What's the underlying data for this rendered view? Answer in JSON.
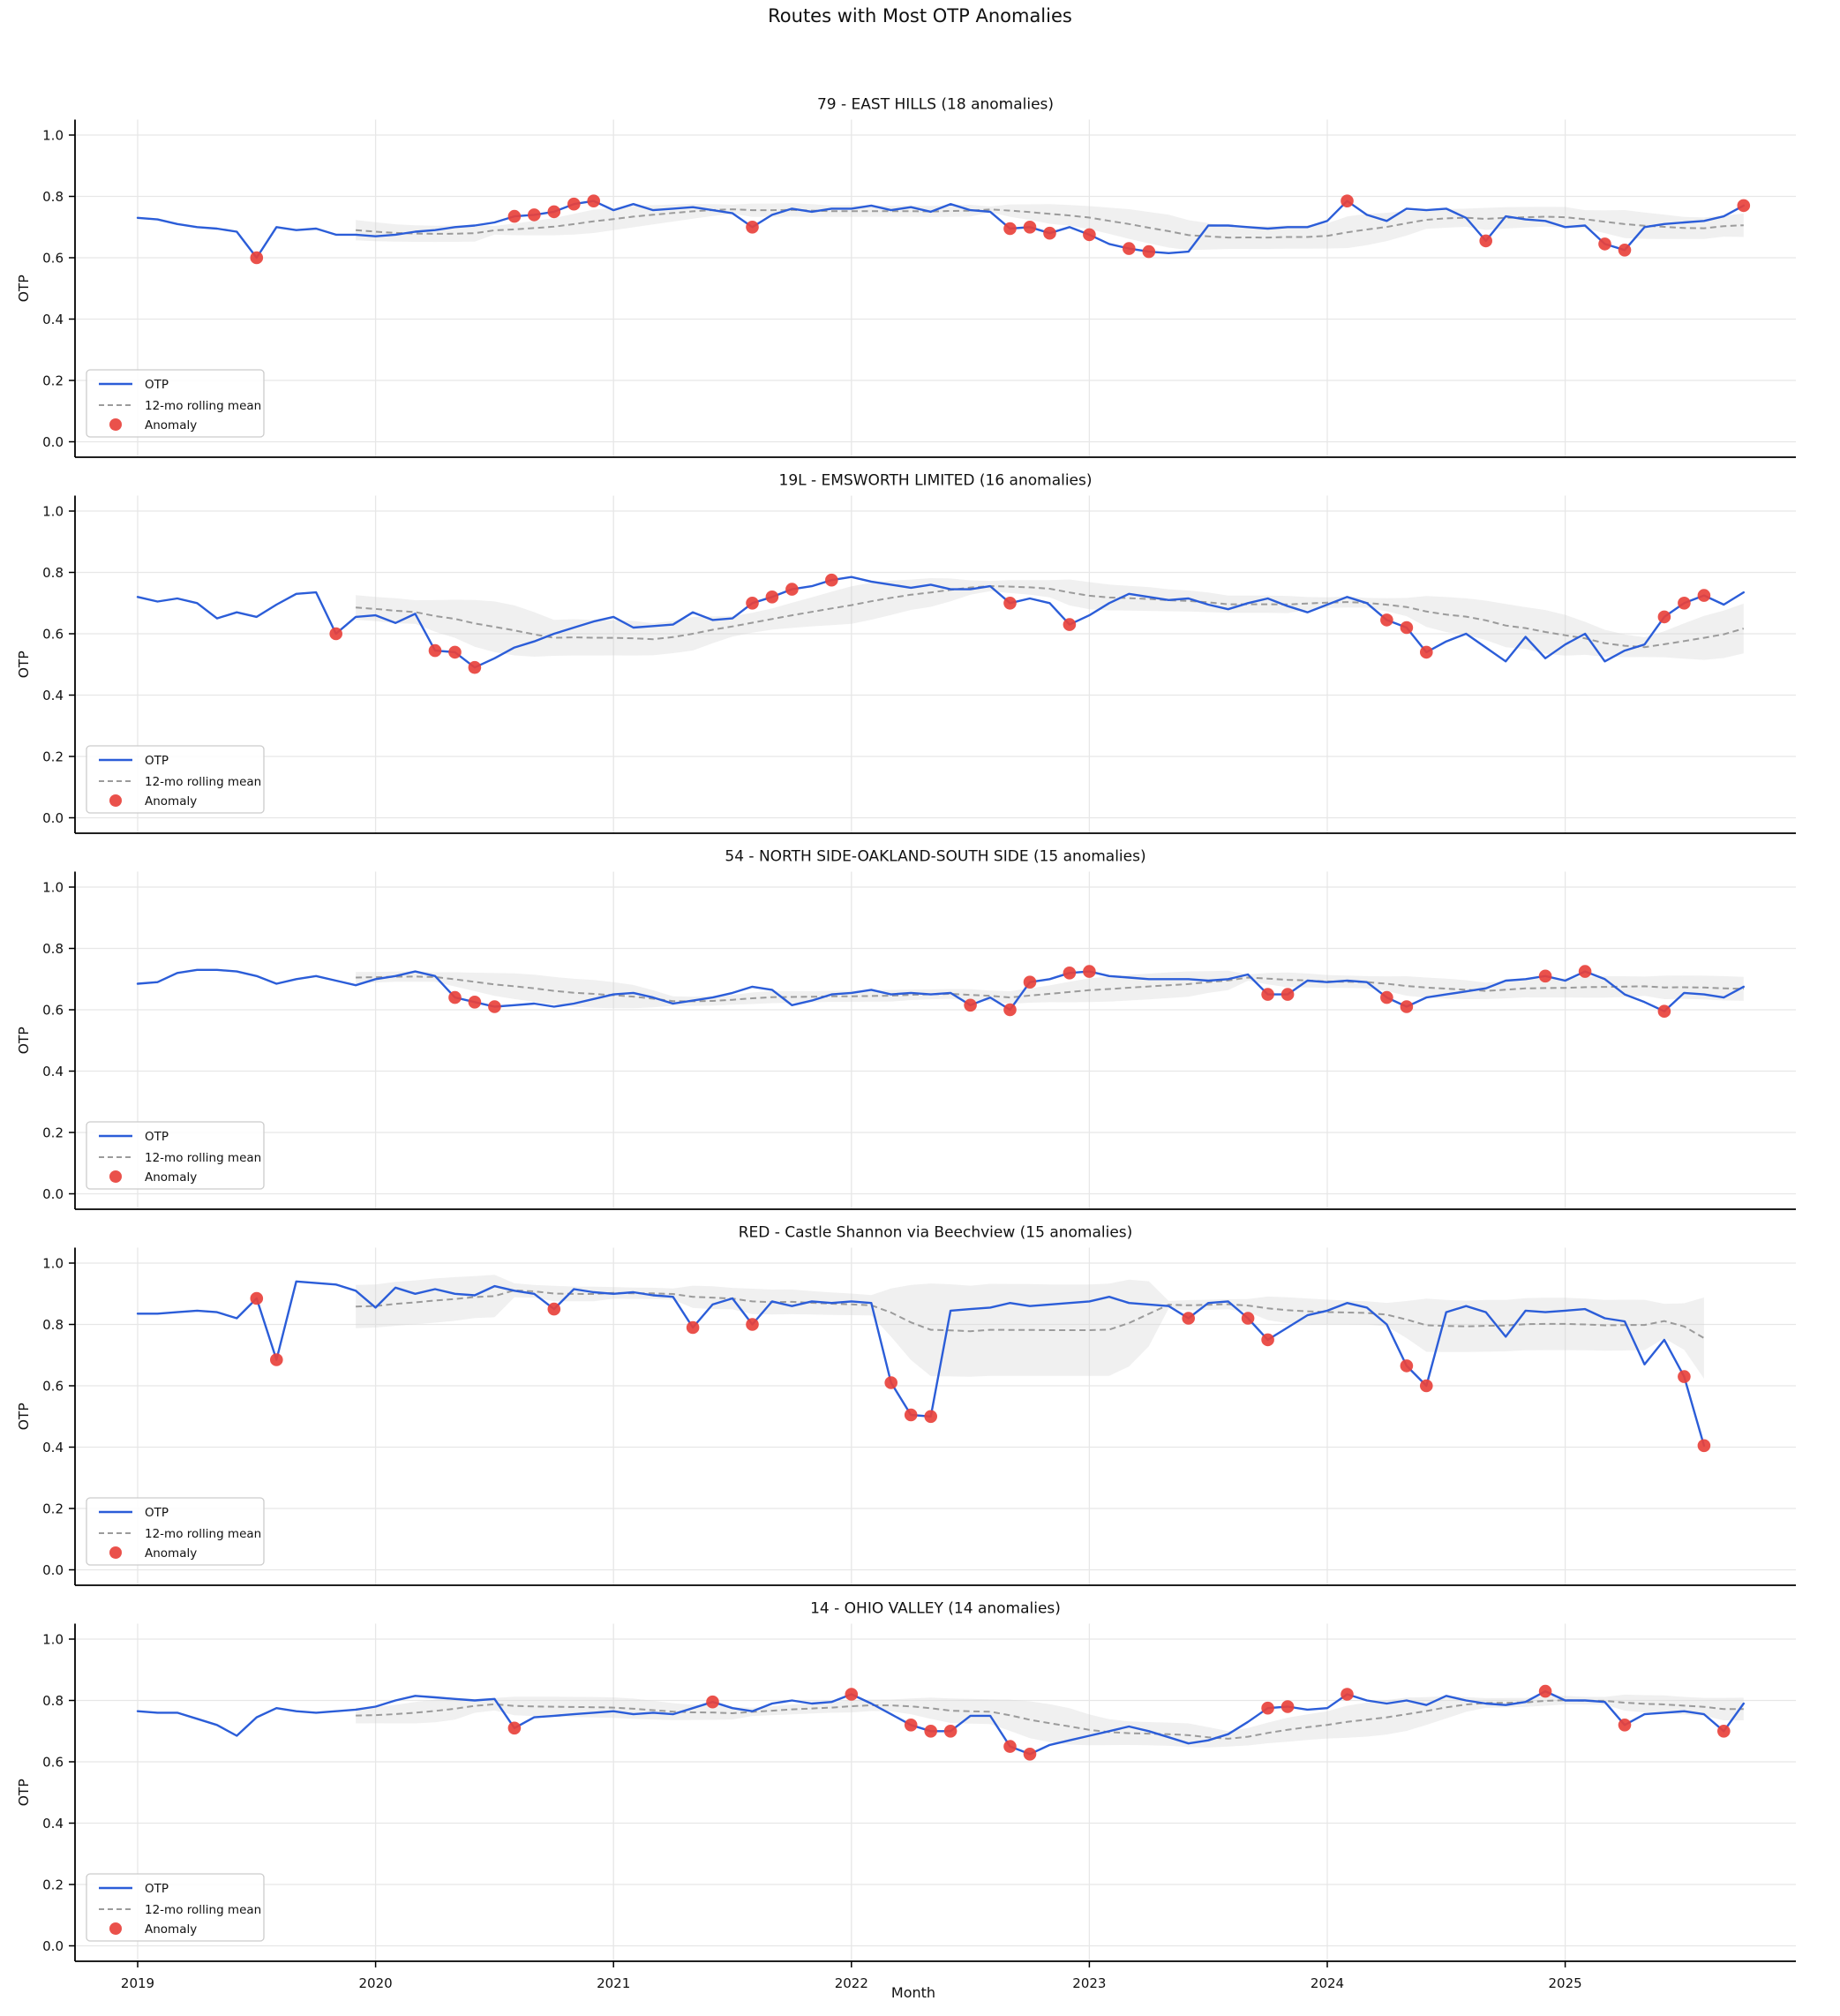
{
  "suptitle": "Routes with Most OTP Anomalies",
  "xlabel": "Month",
  "ylabel": "OTP",
  "legend": {
    "otp": "OTP",
    "rolling": "12-mo rolling mean",
    "anomaly": "Anomaly"
  },
  "colors": {
    "otp_line": "#2b5dd8",
    "rolling_line": "#9b9b9b",
    "band_fill": "#cfcfcf",
    "anomaly": "#e8423c",
    "grid": "#e7e7e7",
    "spine": "#000000"
  },
  "x_ticks": [
    "2019",
    "2020",
    "2021",
    "2022",
    "2023",
    "2024",
    "2025"
  ],
  "y_ticks": [
    "0.0",
    "0.2",
    "0.4",
    "0.6",
    "0.8",
    "1.0"
  ],
  "chart_data": [
    {
      "type": "line",
      "title": "79 - EAST HILLS (18 anomalies)",
      "route": "79",
      "route_name": "EAST HILLS",
      "anomaly_count": 18,
      "start_month": "2019-01",
      "ylabel": "OTP",
      "ylim": [
        -0.05,
        1.05
      ],
      "otp": [
        0.73,
        0.725,
        0.71,
        0.7,
        0.695,
        0.685,
        0.6,
        0.7,
        0.69,
        0.695,
        0.675,
        0.675,
        0.67,
        0.675,
        0.685,
        0.69,
        0.7,
        0.705,
        0.715,
        0.735,
        0.74,
        0.75,
        0.775,
        0.785,
        0.755,
        0.775,
        0.755,
        0.76,
        0.765,
        0.755,
        0.745,
        0.7,
        0.74,
        0.76,
        0.75,
        0.76,
        0.76,
        0.77,
        0.755,
        0.765,
        0.75,
        0.775,
        0.755,
        0.75,
        0.695,
        0.7,
        0.68,
        0.7,
        0.675,
        0.645,
        0.63,
        0.62,
        0.615,
        0.62,
        0.705,
        0.705,
        0.7,
        0.695,
        0.7,
        0.7,
        0.72,
        0.785,
        0.74,
        0.72,
        0.76,
        0.755,
        0.76,
        0.73,
        0.655,
        0.735,
        0.725,
        0.72,
        0.7,
        0.705,
        0.645,
        0.625,
        0.7,
        0.71,
        0.715,
        0.72,
        0.735,
        0.77
      ],
      "anomaly_indices": [
        6,
        19,
        20,
        21,
        22,
        23,
        31,
        44,
        45,
        46,
        48,
        50,
        51,
        61,
        68,
        74,
        75,
        81
      ]
    },
    {
      "type": "line",
      "title": "19L - EMSWORTH LIMITED (16 anomalies)",
      "route": "19L",
      "route_name": "EMSWORTH LIMITED",
      "anomaly_count": 16,
      "start_month": "2019-01",
      "ylabel": "OTP",
      "ylim": [
        -0.05,
        1.05
      ],
      "otp": [
        0.72,
        0.705,
        0.715,
        0.7,
        0.65,
        0.67,
        0.655,
        0.695,
        0.73,
        0.735,
        0.6,
        0.655,
        0.66,
        0.635,
        0.665,
        0.545,
        0.54,
        0.49,
        0.52,
        0.555,
        0.575,
        0.6,
        0.62,
        0.64,
        0.655,
        0.62,
        0.625,
        0.63,
        0.67,
        0.645,
        0.65,
        0.7,
        0.72,
        0.745,
        0.755,
        0.775,
        0.785,
        0.77,
        0.76,
        0.75,
        0.76,
        0.745,
        0.745,
        0.755,
        0.7,
        0.715,
        0.7,
        0.63,
        0.66,
        0.7,
        0.73,
        0.72,
        0.71,
        0.715,
        0.695,
        0.68,
        0.7,
        0.715,
        0.69,
        0.67,
        0.695,
        0.72,
        0.7,
        0.645,
        0.62,
        0.54,
        0.575,
        0.6,
        0.555,
        0.51,
        0.59,
        0.52,
        0.565,
        0.6,
        0.51,
        0.545,
        0.565,
        0.655,
        0.7,
        0.725,
        0.695,
        0.735
      ],
      "anomaly_indices": [
        10,
        15,
        16,
        17,
        31,
        32,
        33,
        35,
        44,
        47,
        63,
        64,
        65,
        77,
        78,
        79
      ]
    },
    {
      "type": "line",
      "title": "54 - NORTH SIDE-OAKLAND-SOUTH SIDE (15 anomalies)",
      "route": "54",
      "route_name": "NORTH SIDE-OAKLAND-SOUTH SIDE",
      "anomaly_count": 15,
      "start_month": "2019-01",
      "ylabel": "OTP",
      "ylim": [
        -0.05,
        1.05
      ],
      "otp": [
        0.685,
        0.69,
        0.72,
        0.73,
        0.73,
        0.725,
        0.71,
        0.685,
        0.7,
        0.71,
        0.695,
        0.68,
        0.7,
        0.71,
        0.725,
        0.71,
        0.64,
        0.625,
        0.61,
        0.615,
        0.62,
        0.61,
        0.62,
        0.635,
        0.65,
        0.655,
        0.64,
        0.62,
        0.63,
        0.64,
        0.655,
        0.675,
        0.665,
        0.615,
        0.63,
        0.65,
        0.655,
        0.665,
        0.65,
        0.655,
        0.65,
        0.655,
        0.615,
        0.64,
        0.6,
        0.69,
        0.7,
        0.72,
        0.725,
        0.71,
        0.705,
        0.7,
        0.7,
        0.7,
        0.695,
        0.7,
        0.715,
        0.65,
        0.65,
        0.695,
        0.69,
        0.695,
        0.69,
        0.64,
        0.61,
        0.64,
        0.65,
        0.66,
        0.67,
        0.695,
        0.7,
        0.71,
        0.695,
        0.725,
        0.7,
        0.65,
        0.625,
        0.595,
        0.655,
        0.65,
        0.64,
        0.675
      ],
      "anomaly_indices": [
        16,
        17,
        18,
        42,
        44,
        45,
        47,
        48,
        57,
        58,
        63,
        64,
        71,
        73,
        77
      ]
    },
    {
      "type": "line",
      "title": "RED - Castle Shannon via Beechview (15 anomalies)",
      "route": "RED",
      "route_name": "Castle Shannon via Beechview",
      "anomaly_count": 15,
      "start_month": "2019-01",
      "ylabel": "OTP",
      "ylim": [
        -0.05,
        1.05
      ],
      "otp": [
        0.835,
        0.835,
        0.84,
        0.845,
        0.84,
        0.82,
        0.885,
        0.685,
        0.94,
        0.935,
        0.93,
        0.91,
        0.855,
        0.92,
        0.9,
        0.915,
        0.9,
        0.895,
        0.925,
        0.91,
        0.9,
        0.85,
        0.915,
        0.905,
        0.9,
        0.905,
        0.895,
        0.89,
        0.79,
        0.865,
        0.885,
        0.8,
        0.875,
        0.86,
        0.875,
        0.87,
        0.875,
        0.87,
        0.61,
        0.505,
        0.5,
        0.845,
        0.85,
        0.855,
        0.87,
        0.86,
        0.865,
        0.87,
        0.875,
        0.89,
        0.87,
        0.865,
        0.86,
        0.82,
        0.87,
        0.875,
        0.82,
        0.75,
        0.79,
        0.83,
        0.845,
        0.87,
        0.855,
        0.8,
        0.665,
        0.6,
        0.84,
        0.86,
        0.84,
        0.76,
        0.845,
        0.84,
        0.845,
        0.85,
        0.82,
        0.81,
        0.67,
        0.75,
        0.63,
        0.405
      ],
      "anomaly_indices": [
        6,
        7,
        21,
        28,
        31,
        38,
        39,
        40,
        53,
        56,
        57,
        64,
        65,
        78,
        79
      ]
    },
    {
      "type": "line",
      "title": "14 - OHIO VALLEY (14 anomalies)",
      "route": "14",
      "route_name": "OHIO VALLEY",
      "anomaly_count": 14,
      "start_month": "2019-01",
      "ylabel": "OTP",
      "ylim": [
        -0.05,
        1.05
      ],
      "otp": [
        0.765,
        0.76,
        0.76,
        0.74,
        0.72,
        0.685,
        0.745,
        0.775,
        0.765,
        0.76,
        0.765,
        0.77,
        0.78,
        0.8,
        0.815,
        0.81,
        0.805,
        0.8,
        0.805,
        0.71,
        0.745,
        0.75,
        0.755,
        0.76,
        0.765,
        0.755,
        0.76,
        0.755,
        0.775,
        0.795,
        0.775,
        0.765,
        0.79,
        0.8,
        0.79,
        0.795,
        0.82,
        0.79,
        0.755,
        0.72,
        0.7,
        0.7,
        0.75,
        0.75,
        0.65,
        0.625,
        0.655,
        0.67,
        0.685,
        0.7,
        0.715,
        0.7,
        0.68,
        0.66,
        0.67,
        0.69,
        0.73,
        0.775,
        0.78,
        0.77,
        0.775,
        0.82,
        0.8,
        0.79,
        0.8,
        0.785,
        0.815,
        0.8,
        0.79,
        0.785,
        0.795,
        0.83,
        0.8,
        0.8,
        0.795,
        0.72,
        0.755,
        0.76,
        0.765,
        0.755,
        0.7,
        0.79
      ],
      "anomaly_indices": [
        19,
        29,
        36,
        39,
        40,
        41,
        44,
        45,
        57,
        58,
        61,
        71,
        75,
        80
      ]
    }
  ],
  "rolling_window_months": 12
}
